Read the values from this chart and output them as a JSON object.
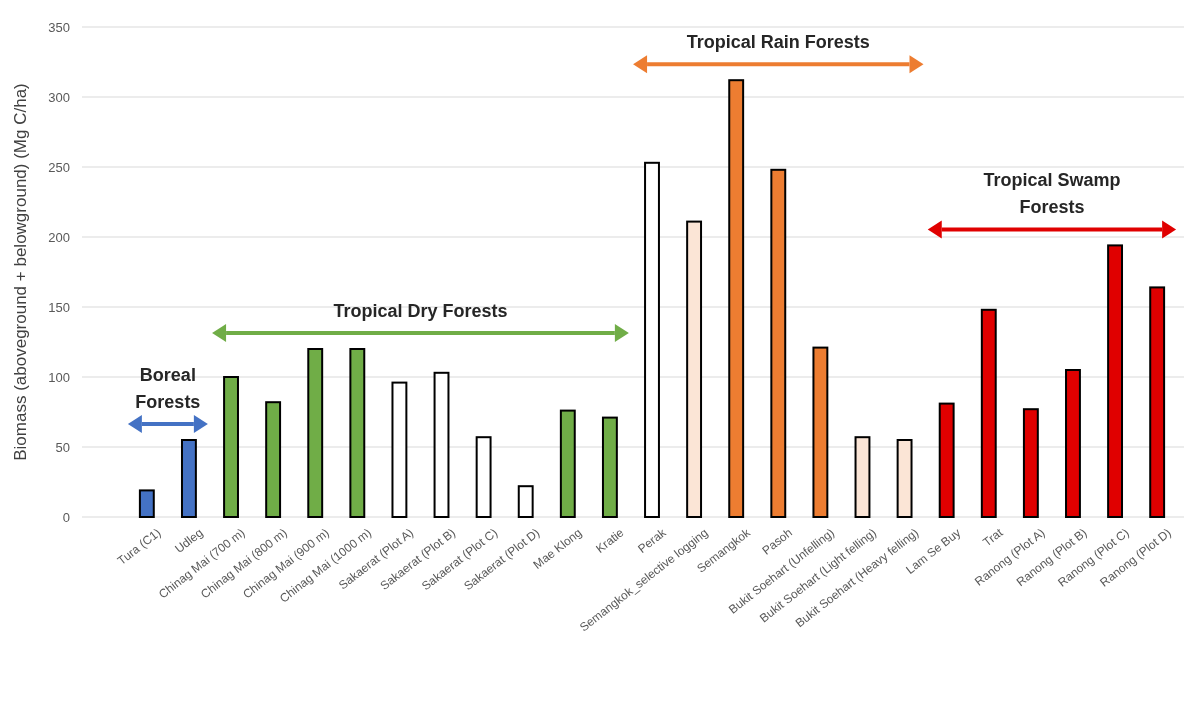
{
  "chart_data": {
    "type": "bar",
    "ylabel": "Biomass (aboveground + belowground) (Mg C/ha)",
    "categories": [
      "Tura (C1)",
      "Udleg",
      "Chinag Mai (700 m)",
      "Chinag Mai (800 m)",
      "Chinag Mai (900 m)",
      "Chinag Mai (1000 m)",
      "Sakaerat (Plot A)",
      "Sakaerat (Plot B)",
      "Sakaerat (Plot C)",
      "Sakaerat (Plot D)",
      "Mae Klong",
      "Kratie",
      "Perak",
      "Semangkok_selective logging",
      "Semangkok",
      "Pasoh",
      "Bukit Soehart (Unfelling)",
      "Bukit Soehart (Light felling)",
      "Bukit Soehart (Heavy felling)",
      "Lam Se Buy",
      "Trat",
      "Ranong (Plot A)",
      "Ranong (Plot B)",
      "Ranong (Plot C)",
      "Ranong (Plot D)"
    ],
    "values": [
      19,
      55,
      100,
      82,
      120,
      120,
      96,
      103,
      57,
      22,
      76,
      71,
      253,
      211,
      312,
      248,
      121,
      57,
      55,
      81,
      148,
      77,
      105,
      194,
      164
    ],
    "colors": [
      "#4472c4",
      "#4472c4",
      "#70ad47",
      "#70ad47",
      "#70ad47",
      "#70ad47",
      "#ffffff",
      "#ffffff",
      "#ffffff",
      "#ffffff",
      "#70ad47",
      "#70ad47",
      "#ffffff",
      "#fbe5d6",
      "#ed7d31",
      "#ed7d31",
      "#ed7d31",
      "#fbe5d6",
      "#fbe5d6",
      "#e00000",
      "#e00000",
      "#e00000",
      "#e00000",
      "#e00000",
      "#e00000"
    ],
    "ylim": [
      0,
      350
    ],
    "yticks": [
      0,
      50,
      100,
      150,
      200,
      250,
      300,
      350
    ],
    "grid": "y",
    "annotations": [
      "Boreal Forests",
      "Tropical Dry Forests",
      "Tropical Rain Forests",
      "Tropical Swamp Forests"
    ]
  }
}
